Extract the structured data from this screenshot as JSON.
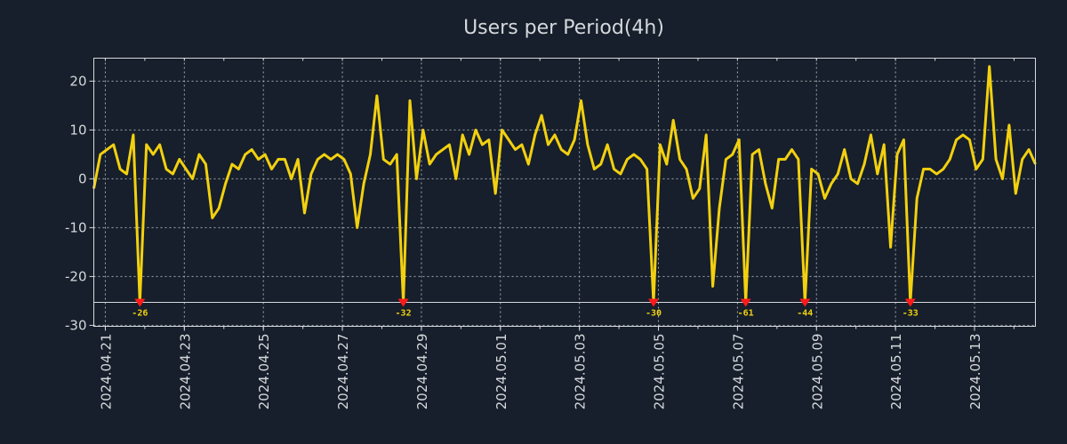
{
  "chart_data": {
    "type": "line",
    "title": "Users per Period(4h)",
    "xlabel": "",
    "ylabel": "",
    "x_unit": "4h period index",
    "values": [
      -2,
      5,
      6,
      7,
      2,
      1,
      9,
      -26,
      7,
      5,
      7,
      2,
      1,
      4,
      2,
      0,
      5,
      3,
      -8,
      -6,
      -1,
      3,
      2,
      5,
      6,
      4,
      5,
      2,
      4,
      4,
      0,
      4,
      -7,
      1,
      4,
      5,
      4,
      5,
      4,
      1,
      -10,
      -1,
      5,
      17,
      4,
      3,
      5,
      -32,
      16,
      0,
      10,
      3,
      5,
      6,
      7,
      0,
      9,
      5,
      10,
      7,
      8,
      -3,
      10,
      8,
      6,
      7,
      3,
      9,
      13,
      7,
      9,
      6,
      5,
      8,
      16,
      7,
      2,
      3,
      7,
      2,
      1,
      4,
      5,
      4,
      2,
      -30,
      7,
      3,
      12,
      4,
      2,
      -4,
      -2,
      9,
      -22,
      -6,
      4,
      5,
      8,
      -61,
      5,
      6,
      -1,
      -6,
      4,
      4,
      6,
      4,
      -44,
      2,
      1,
      -4,
      -1,
      1,
      6,
      0,
      -1,
      3,
      9,
      1,
      7,
      -14,
      5,
      8,
      -33,
      -4,
      2,
      2,
      1,
      2,
      4,
      8,
      9,
      8,
      2,
      4,
      23,
      4,
      0,
      11,
      -3,
      4,
      6,
      3
    ],
    "ylim": [
      -30.2,
      24.7
    ],
    "clip_value": -25.3,
    "yticks": [
      -30,
      -20,
      -10,
      0,
      10,
      20
    ],
    "xticks": [
      {
        "at": 1.75,
        "label": "2024.04.21"
      },
      {
        "at": 13.75,
        "label": "2024.04.23"
      },
      {
        "at": 25.75,
        "label": "2024.04.25"
      },
      {
        "at": 37.75,
        "label": "2024.04.27"
      },
      {
        "at": 49.75,
        "label": "2024.04.29"
      },
      {
        "at": 61.75,
        "label": "2024.05.01"
      },
      {
        "at": 73.75,
        "label": "2024.05.03"
      },
      {
        "at": 85.75,
        "label": "2024.05.05"
      },
      {
        "at": 97.75,
        "label": "2024.05.07"
      },
      {
        "at": 109.75,
        "label": "2024.05.09"
      },
      {
        "at": 121.75,
        "label": "2024.05.11"
      },
      {
        "at": 133.75,
        "label": "2024.05.13"
      }
    ],
    "outlier_labels": [
      "-26",
      "-32",
      "-30",
      "-61",
      "-44",
      "-33"
    ],
    "grid": true,
    "colors": {
      "background": "#161f2b",
      "line": "#f2d00f",
      "marker": "#ff1a1a",
      "axis": "#d6d8dc",
      "grid": "#c8ccd2"
    }
  }
}
